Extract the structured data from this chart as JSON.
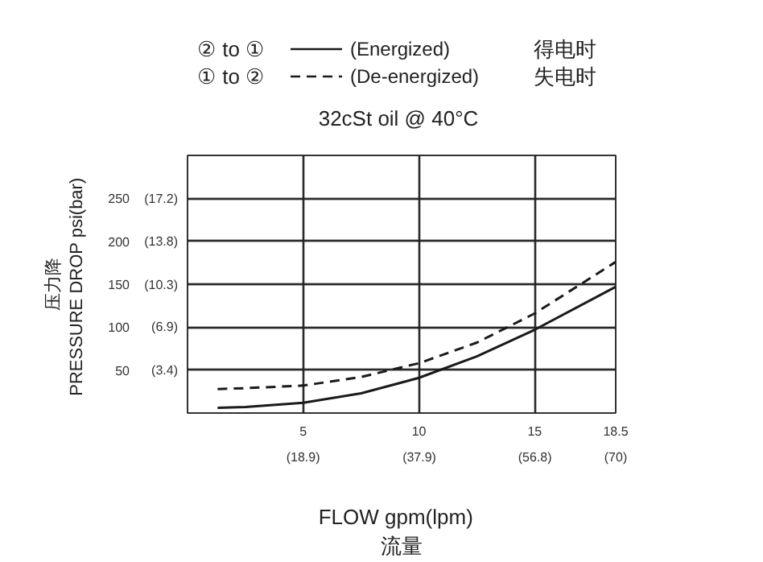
{
  "chart_data": {
    "type": "line",
    "subtitle": "32cSt oil @ 40°C",
    "xlabel": "FLOW   gpm(lpm)\n流量",
    "ylabel": "压力降\nPRESSURE DROP  psi(bar)",
    "annotations": [
      "(Energized)",
      "得电时",
      "(De-energized)",
      "失电时"
    ],
    "legend": "top",
    "grid": true,
    "xlim": [
      0,
      18.5
    ],
    "xticks": [
      5,
      10,
      15,
      18.5
    ],
    "x2lim": [
      0,
      70
    ],
    "x2ticks": [
      {
        "value": 18.9,
        "label": "(18.9)"
      },
      {
        "value": 37.9,
        "label": "(37.9)"
      },
      {
        "value": 56.8,
        "label": "(56.8)"
      },
      {
        "value": 70,
        "label": "(70)"
      }
    ],
    "ylim": [
      0,
      300
    ],
    "yticks": [
      50,
      100,
      150,
      200,
      250
    ],
    "y2lim": [
      0,
      20.7
    ],
    "y2ticks": [
      {
        "value": 3.4,
        "label": "(3.4)"
      },
      {
        "value": 6.9,
        "label": "(6.9)"
      },
      {
        "value": 10.3,
        "label": "(10.3)"
      },
      {
        "value": 13.8,
        "label": "(13.8)"
      },
      {
        "value": 17.2,
        "label": "(17.2)"
      }
    ],
    "series": [
      {
        "name": "② to ①",
        "color": "#1a1a1a",
        "line_style": "solid",
        "x": [
          1.3,
          2.5,
          5,
          7.5,
          10,
          12.5,
          15,
          18.5
        ],
        "values": [
          6,
          7,
          12,
          23,
          41,
          66,
          97,
          147
        ]
      },
      {
        "name": "① to ②",
        "color": "#1a1a1a",
        "line_style": "dashed",
        "x": [
          1.3,
          2.5,
          5,
          7.5,
          10,
          12.5,
          15,
          18.5
        ],
        "values": [
          28,
          29,
          32,
          42,
          58,
          82,
          116,
          176
        ]
      }
    ]
  }
}
